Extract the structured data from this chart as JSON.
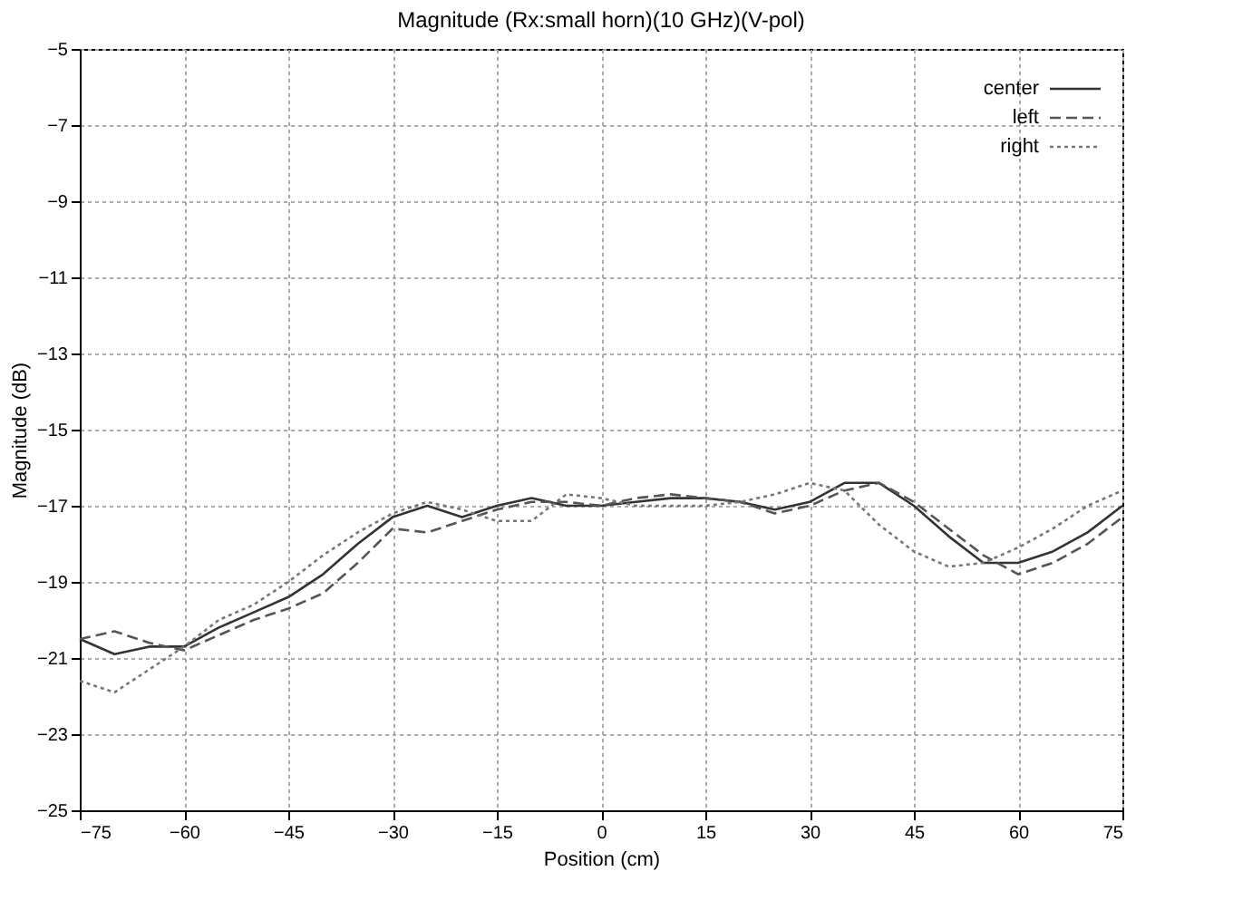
{
  "chart_data": {
    "type": "line",
    "title": "Magnitude (Rx:small horn)(10 GHz)(V-pol)",
    "xlabel": "Position (cm)",
    "ylabel": "Magnitude (dB)",
    "x": [
      -75,
      -70,
      -65,
      -60,
      -55,
      -50,
      -45,
      -40,
      -35,
      -30,
      -25,
      -20,
      -15,
      -10,
      -5,
      0,
      5,
      10,
      15,
      20,
      25,
      30,
      35,
      40,
      45,
      50,
      55,
      60,
      65,
      70,
      75
    ],
    "series": [
      {
        "name": "center",
        "color": "#333333",
        "line_style": "solid",
        "values": [
          -20.5,
          -20.9,
          -20.7,
          -20.7,
          -20.2,
          -19.8,
          -19.4,
          -18.8,
          -18.0,
          -17.3,
          -17.0,
          -17.3,
          -17.0,
          -16.8,
          -17.0,
          -17.0,
          -16.9,
          -16.8,
          -16.8,
          -16.9,
          -17.1,
          -16.9,
          -16.4,
          -16.4,
          -17.0,
          -17.8,
          -18.5,
          -18.5,
          -18.2,
          -17.7,
          -17.0
        ]
      },
      {
        "name": "left",
        "color": "#555555",
        "line_style": "dashed",
        "values": [
          -20.5,
          -20.3,
          -20.6,
          -20.8,
          -20.4,
          -20.0,
          -19.7,
          -19.3,
          -18.5,
          -17.6,
          -17.7,
          -17.4,
          -17.1,
          -16.9,
          -16.9,
          -17.0,
          -16.8,
          -16.7,
          -16.8,
          -16.9,
          -17.2,
          -17.0,
          -16.6,
          -16.4,
          -16.9,
          -17.6,
          -18.3,
          -18.8,
          -18.5,
          -18.0,
          -17.3
        ]
      },
      {
        "name": "right",
        "color": "#777777",
        "line_style": "dotted",
        "values": [
          -21.6,
          -21.9,
          -21.3,
          -20.7,
          -20.0,
          -19.6,
          -19.0,
          -18.3,
          -17.7,
          -17.2,
          -16.9,
          -17.1,
          -17.4,
          -17.4,
          -16.7,
          -16.8,
          -17.0,
          -17.0,
          -17.0,
          -16.9,
          -16.7,
          -16.4,
          -16.6,
          -17.5,
          -18.2,
          -18.6,
          -18.5,
          -18.1,
          -17.6,
          -17.0,
          -16.6
        ]
      }
    ],
    "xlim": [
      -75,
      75
    ],
    "xticks": [
      -75,
      -60,
      -45,
      -30,
      -15,
      0,
      15,
      30,
      45,
      60,
      75
    ],
    "ylim": [
      -25,
      -5
    ],
    "yticks": [
      -25,
      -23,
      -21,
      -19,
      -17,
      -15,
      -13,
      -11,
      -9,
      -7,
      -5
    ],
    "grid": true,
    "legend": "top right"
  }
}
